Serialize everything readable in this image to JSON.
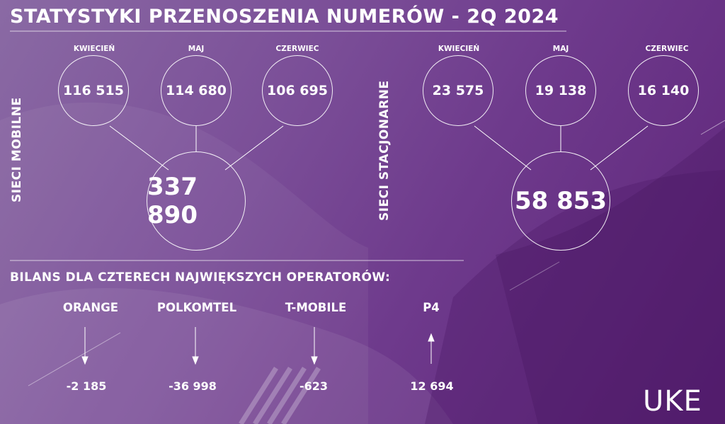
{
  "title": "STATYSTYKI PRZENOSZENIA NUMERÓW - 2Q 2024",
  "mobile": {
    "label": "SIECI MOBILNE",
    "months": [
      {
        "name": "KWIECIEŃ",
        "value": "116 515"
      },
      {
        "name": "MAJ",
        "value": "114 680"
      },
      {
        "name": "CZERWIEC",
        "value": "106 695"
      }
    ],
    "total": "337 890"
  },
  "fixed": {
    "label": "SIECI STACJONARNE",
    "months": [
      {
        "name": "KWIECIEŃ",
        "value": "23 575"
      },
      {
        "name": "MAJ",
        "value": "19 138"
      },
      {
        "name": "CZERWIEC",
        "value": "16 140"
      }
    ],
    "total": "58 853"
  },
  "balance": {
    "heading": "BILANS DLA CZTERECH NAJWIĘKSZYCH OPERATORÓW:",
    "operators": [
      {
        "name": "ORANGE",
        "value": "-2 185",
        "direction": "down"
      },
      {
        "name": "POLKOMTEL",
        "value": "-36 998",
        "direction": "down"
      },
      {
        "name": "T-MOBILE",
        "value": "-623",
        "direction": "down"
      },
      {
        "name": "P4",
        "value": "12 694",
        "direction": "up"
      }
    ]
  },
  "logo": "UKE",
  "colors": {
    "background_light": "#8a6aa4",
    "background_dark": "#5e2479",
    "text": "#ffffff"
  }
}
